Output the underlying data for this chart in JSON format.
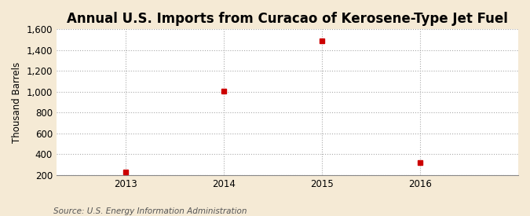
{
  "title": "Annual U.S. Imports from Curacao of Kerosene-Type Jet Fuel",
  "ylabel": "Thousand Barrels",
  "source": "Source: U.S. Energy Information Administration",
  "years": [
    2013,
    2014,
    2015,
    2016
  ],
  "values": [
    228,
    1008,
    1491,
    320
  ],
  "marker_color": "#cc0000",
  "marker_size": 5,
  "ylim": [
    200,
    1600
  ],
  "yticks": [
    200,
    400,
    600,
    800,
    1000,
    1200,
    1400,
    1600
  ],
  "xlim_left": 2012.3,
  "xlim_right": 2017.0,
  "background_color": "#f5ead5",
  "plot_bg_color": "#ffffff",
  "grid_color": "#aaaaaa",
  "title_fontsize": 12,
  "label_fontsize": 8.5,
  "tick_fontsize": 8.5,
  "source_fontsize": 7.5
}
